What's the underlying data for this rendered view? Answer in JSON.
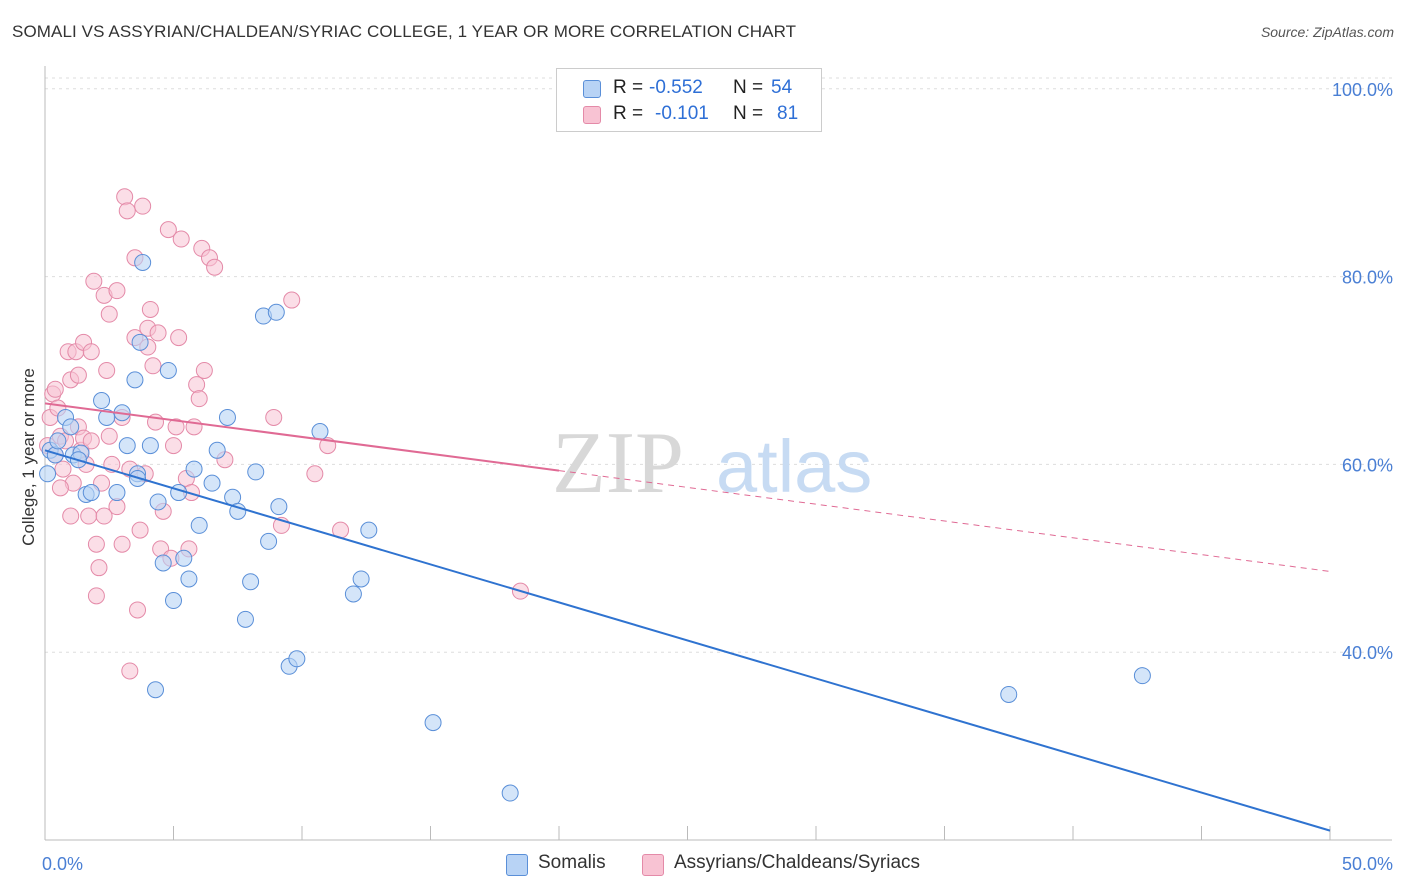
{
  "header": {
    "title": "SOMALI VS ASSYRIAN/CHALDEAN/SYRIAC COLLEGE, 1 YEAR OR MORE CORRELATION CHART",
    "source": "Source: ZipAtlas.com"
  },
  "watermark": {
    "zip": "ZIP",
    "atlas": "atlas"
  },
  "legend": {
    "rows": [
      {
        "r_label": "R =",
        "r_value": "-0.552",
        "n_label": "N =",
        "n_value": "54"
      },
      {
        "r_label": "R =",
        "r_value": "-0.101",
        "n_label": "N =",
        "n_value": "81"
      }
    ]
  },
  "bottom_legend": {
    "series1": "Somalis",
    "series2": "Assyrians/Chaldeans/Syriacs"
  },
  "chart_data": {
    "type": "scatter",
    "title": "SOMALI VS ASSYRIAN/CHALDEAN/SYRIAC COLLEGE, 1 YEAR OR MORE CORRELATION CHART",
    "xlabel": "",
    "ylabel": "College, 1 year or more",
    "xlim": [
      0,
      50
    ],
    "ylim": [
      20,
      102
    ],
    "x_tick_labels": [
      "0.0%",
      "50.0%"
    ],
    "y_ticks": [
      40,
      60,
      80,
      100
    ],
    "y_tick_labels": [
      "40.0%",
      "60.0%",
      "80.0%",
      "100.0%"
    ],
    "colors": {
      "somali_fill": "#b8d3f5",
      "somali_stroke": "#5a8fd8",
      "somali_line": "#2f73d0",
      "assyrian_fill": "#f8c3d3",
      "assyrian_stroke": "#e48aa8",
      "assyrian_line": "#e06a94"
    },
    "series": [
      {
        "name": "Somalis",
        "r": -0.552,
        "n": 54,
        "trend": {
          "x0": 0,
          "y0": 61.5,
          "x1": 50,
          "y1": 21.0,
          "dash_from": null
        },
        "points": [
          [
            0.1,
            59.0
          ],
          [
            0.2,
            61.5
          ],
          [
            0.4,
            61.0
          ],
          [
            0.5,
            62.5
          ],
          [
            0.8,
            65.0
          ],
          [
            1.0,
            64.0
          ],
          [
            1.1,
            61.0
          ],
          [
            1.4,
            61.2
          ],
          [
            1.6,
            56.8
          ],
          [
            1.8,
            57.0
          ],
          [
            2.2,
            66.8
          ],
          [
            2.4,
            65.0
          ],
          [
            2.8,
            57.0
          ],
          [
            3.0,
            65.5
          ],
          [
            3.2,
            62.0
          ],
          [
            3.6,
            59.0
          ],
          [
            3.6,
            58.5
          ],
          [
            3.7,
            73.0
          ],
          [
            3.8,
            81.5
          ],
          [
            4.1,
            62.0
          ],
          [
            4.3,
            36.0
          ],
          [
            4.4,
            56.0
          ],
          [
            4.6,
            49.5
          ],
          [
            4.8,
            70.0
          ],
          [
            5.0,
            45.5
          ],
          [
            5.2,
            57.0
          ],
          [
            5.4,
            50.0
          ],
          [
            5.6,
            47.8
          ],
          [
            5.8,
            59.5
          ],
          [
            6.0,
            53.5
          ],
          [
            6.5,
            58.0
          ],
          [
            7.1,
            65.0
          ],
          [
            7.3,
            56.5
          ],
          [
            7.5,
            55.0
          ],
          [
            7.8,
            43.5
          ],
          [
            8.0,
            47.5
          ],
          [
            8.2,
            59.2
          ],
          [
            8.5,
            75.8
          ],
          [
            8.7,
            51.8
          ],
          [
            9.0,
            76.2
          ],
          [
            9.1,
            55.5
          ],
          [
            9.5,
            38.5
          ],
          [
            9.8,
            39.3
          ],
          [
            10.7,
            63.5
          ],
          [
            12.0,
            46.2
          ],
          [
            12.3,
            47.8
          ],
          [
            12.6,
            53.0
          ],
          [
            15.1,
            32.5
          ],
          [
            18.1,
            25.0
          ],
          [
            37.5,
            35.5
          ],
          [
            42.7,
            37.5
          ],
          [
            3.5,
            69.0
          ],
          [
            1.3,
            60.5
          ],
          [
            6.7,
            61.5
          ]
        ]
      },
      {
        "name": "Assyrians/Chaldeans/Syriacs",
        "r": -0.101,
        "n": 81,
        "trend": {
          "x0": 0,
          "y0": 66.5,
          "x1": 50,
          "y1": 48.6,
          "dash_from": 20
        },
        "points": [
          [
            0.1,
            62.0
          ],
          [
            0.2,
            65.0
          ],
          [
            0.3,
            67.5
          ],
          [
            0.4,
            68.0
          ],
          [
            0.4,
            61.0
          ],
          [
            0.5,
            66.0
          ],
          [
            0.6,
            63.0
          ],
          [
            0.7,
            59.5
          ],
          [
            0.8,
            62.5
          ],
          [
            0.9,
            72.0
          ],
          [
            1.0,
            69.0
          ],
          [
            1.0,
            54.5
          ],
          [
            1.1,
            58.0
          ],
          [
            1.2,
            72.0
          ],
          [
            1.3,
            69.5
          ],
          [
            1.3,
            64.0
          ],
          [
            1.4,
            61.5
          ],
          [
            1.5,
            73.0
          ],
          [
            1.5,
            62.8
          ],
          [
            1.6,
            60.0
          ],
          [
            1.7,
            54.5
          ],
          [
            1.8,
            72.0
          ],
          [
            1.8,
            62.5
          ],
          [
            1.9,
            79.5
          ],
          [
            2.0,
            51.5
          ],
          [
            2.0,
            46.0
          ],
          [
            2.1,
            49.0
          ],
          [
            2.2,
            58.0
          ],
          [
            2.3,
            78.0
          ],
          [
            2.3,
            54.5
          ],
          [
            2.4,
            70.0
          ],
          [
            2.5,
            76.0
          ],
          [
            2.5,
            63.0
          ],
          [
            2.6,
            60.0
          ],
          [
            2.8,
            78.5
          ],
          [
            2.8,
            55.5
          ],
          [
            3.0,
            65.0
          ],
          [
            3.0,
            51.5
          ],
          [
            3.1,
            88.5
          ],
          [
            3.2,
            87.0
          ],
          [
            3.3,
            59.5
          ],
          [
            3.3,
            38.0
          ],
          [
            3.5,
            82.0
          ],
          [
            3.5,
            73.5
          ],
          [
            3.6,
            44.5
          ],
          [
            3.7,
            53.0
          ],
          [
            3.8,
            87.5
          ],
          [
            3.9,
            59.0
          ],
          [
            4.0,
            74.5
          ],
          [
            4.0,
            72.5
          ],
          [
            4.1,
            76.5
          ],
          [
            4.2,
            70.5
          ],
          [
            4.3,
            64.5
          ],
          [
            4.4,
            74.0
          ],
          [
            4.5,
            51.0
          ],
          [
            4.6,
            55.0
          ],
          [
            4.8,
            85.0
          ],
          [
            4.9,
            50.0
          ],
          [
            5.0,
            62.0
          ],
          [
            5.1,
            64.0
          ],
          [
            5.2,
            73.5
          ],
          [
            5.3,
            84.0
          ],
          [
            5.5,
            58.5
          ],
          [
            5.6,
            51.0
          ],
          [
            5.7,
            57.0
          ],
          [
            5.8,
            64.0
          ],
          [
            5.9,
            68.5
          ],
          [
            6.0,
            67.0
          ],
          [
            6.1,
            83.0
          ],
          [
            6.2,
            70.0
          ],
          [
            6.4,
            82.0
          ],
          [
            6.6,
            81.0
          ],
          [
            7.0,
            60.5
          ],
          [
            8.9,
            65.0
          ],
          [
            9.2,
            53.5
          ],
          [
            9.6,
            77.5
          ],
          [
            10.5,
            59.0
          ],
          [
            11.0,
            62.0
          ],
          [
            11.5,
            53.0
          ],
          [
            18.5,
            46.5
          ],
          [
            0.6,
            57.5
          ]
        ]
      }
    ]
  }
}
